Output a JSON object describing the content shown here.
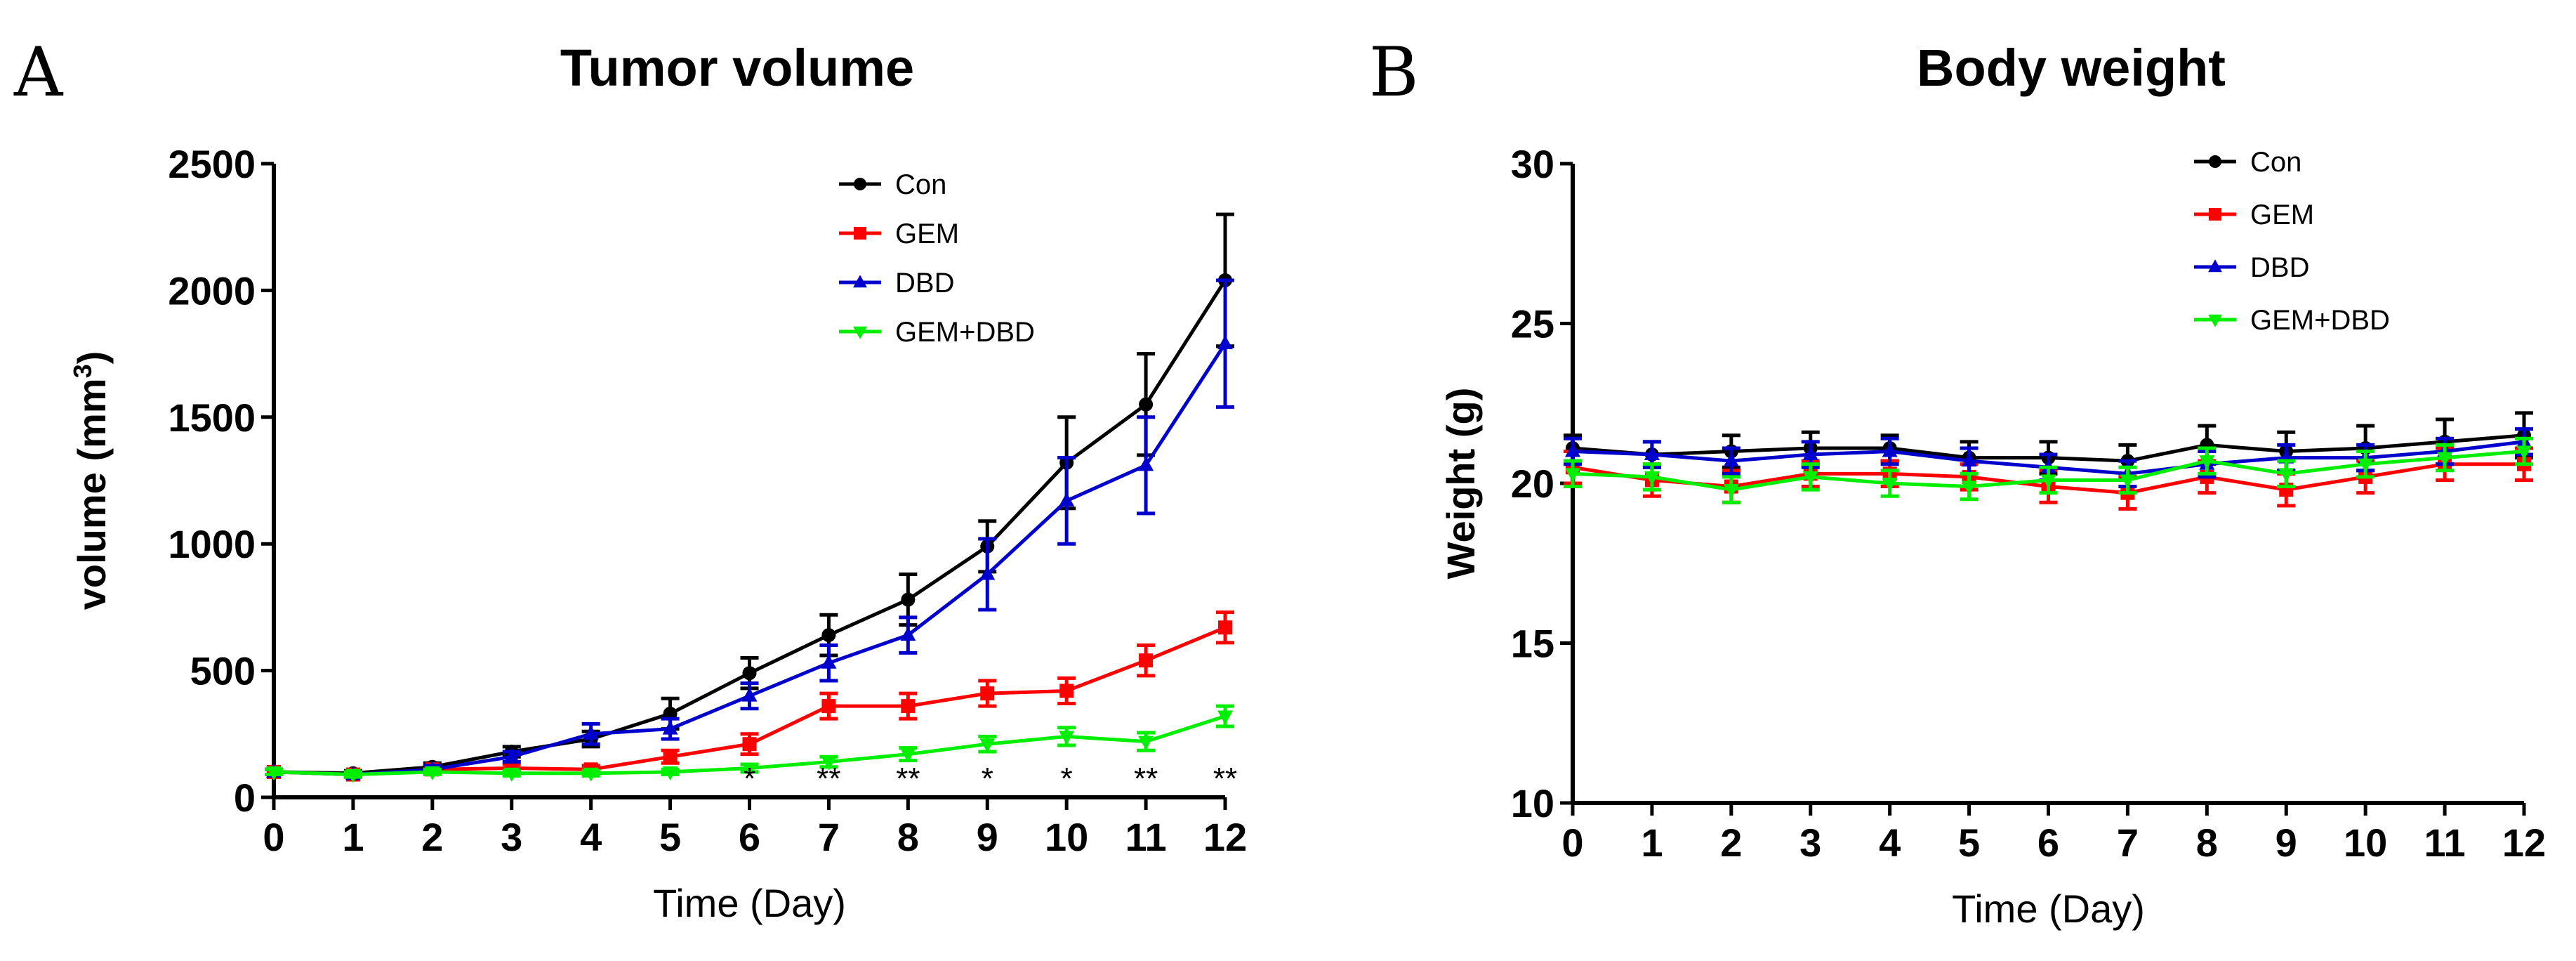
{
  "figure": {
    "panel_a_letter": "A",
    "panel_b_letter": "B"
  },
  "chart_data": [
    {
      "type": "line",
      "title": "Tumor volume",
      "xlabel": "Time (Day)",
      "ylabel": "volume (mm",
      "ylabel_sup": "3",
      "ylabel_close": ")",
      "xlim": [
        0,
        12
      ],
      "ylim": [
        0,
        2500
      ],
      "x_ticks": [
        0,
        1,
        2,
        3,
        4,
        5,
        6,
        7,
        8,
        9,
        10,
        11,
        12
      ],
      "y_ticks": [
        0,
        500,
        1000,
        1500,
        2000,
        2500
      ],
      "legend_position": "top-right",
      "series": [
        {
          "name": "Con",
          "color": "#000000",
          "marker": "circle",
          "x": [
            0,
            1,
            2,
            3,
            4,
            5,
            6,
            7,
            8,
            9,
            10,
            11,
            12
          ],
          "values": [
            100,
            95,
            120,
            180,
            230,
            330,
            490,
            640,
            780,
            990,
            1320,
            1550,
            2040
          ],
          "errors": [
            10,
            10,
            15,
            20,
            30,
            60,
            60,
            80,
            100,
            100,
            180,
            200,
            260
          ]
        },
        {
          "name": "GEM",
          "color": "#ff0000",
          "marker": "square",
          "x": [
            0,
            1,
            2,
            3,
            4,
            5,
            6,
            7,
            8,
            9,
            10,
            11,
            12
          ],
          "values": [
            100,
            90,
            110,
            115,
            110,
            160,
            210,
            360,
            360,
            410,
            420,
            540,
            670
          ],
          "errors": [
            10,
            10,
            10,
            15,
            15,
            25,
            40,
            50,
            50,
            50,
            50,
            60,
            60
          ]
        },
        {
          "name": "DBD",
          "color": "#0000cc",
          "marker": "triangle",
          "x": [
            0,
            1,
            2,
            3,
            4,
            5,
            6,
            7,
            8,
            9,
            10,
            11,
            12
          ],
          "values": [
            100,
            90,
            110,
            160,
            250,
            270,
            400,
            530,
            640,
            880,
            1170,
            1310,
            1790
          ],
          "errors": [
            10,
            10,
            15,
            20,
            40,
            40,
            50,
            70,
            70,
            140,
            170,
            190,
            250
          ]
        },
        {
          "name": "GEM+DBD",
          "color": "#00ee00",
          "marker": "inv-triangle",
          "x": [
            0,
            1,
            2,
            3,
            4,
            5,
            6,
            7,
            8,
            9,
            10,
            11,
            12
          ],
          "values": [
            100,
            90,
            100,
            95,
            95,
            100,
            115,
            140,
            170,
            210,
            240,
            220,
            320
          ],
          "errors": [
            10,
            10,
            10,
            10,
            10,
            10,
            15,
            20,
            25,
            30,
            35,
            35,
            40
          ]
        }
      ],
      "annotations": [
        {
          "x": 6,
          "text": "*"
        },
        {
          "x": 7,
          "text": "**"
        },
        {
          "x": 8,
          "text": "**"
        },
        {
          "x": 9,
          "text": "*"
        },
        {
          "x": 10,
          "text": "*"
        },
        {
          "x": 11,
          "text": "**"
        },
        {
          "x": 12,
          "text": "**"
        }
      ]
    },
    {
      "type": "line",
      "title": "Body weight",
      "xlabel": "Time (Day)",
      "ylabel": "Weight (g)",
      "xlim": [
        0,
        12
      ],
      "ylim": [
        10,
        30
      ],
      "x_ticks": [
        0,
        1,
        2,
        3,
        4,
        5,
        6,
        7,
        8,
        9,
        10,
        11,
        12
      ],
      "y_ticks": [
        10,
        15,
        20,
        25,
        30
      ],
      "legend_position": "top-right",
      "series": [
        {
          "name": "Con",
          "color": "#000000",
          "marker": "circle",
          "x": [
            0,
            1,
            2,
            3,
            4,
            5,
            6,
            7,
            8,
            9,
            10,
            11,
            12
          ],
          "values": [
            21.1,
            20.9,
            21.0,
            21.1,
            21.1,
            20.8,
            20.8,
            20.7,
            21.2,
            21.0,
            21.1,
            21.3,
            21.5
          ],
          "errors": [
            0.4,
            0.4,
            0.5,
            0.5,
            0.4,
            0.5,
            0.5,
            0.5,
            0.6,
            0.6,
            0.7,
            0.7,
            0.7
          ]
        },
        {
          "name": "GEM",
          "color": "#ff0000",
          "marker": "square",
          "x": [
            0,
            1,
            2,
            3,
            4,
            5,
            6,
            7,
            8,
            9,
            10,
            11,
            12
          ],
          "values": [
            20.5,
            20.1,
            19.9,
            20.3,
            20.3,
            20.2,
            19.9,
            19.7,
            20.2,
            19.8,
            20.2,
            20.6,
            20.6
          ],
          "errors": [
            0.5,
            0.5,
            0.5,
            0.4,
            0.4,
            0.4,
            0.5,
            0.5,
            0.5,
            0.5,
            0.5,
            0.5,
            0.5
          ]
        },
        {
          "name": "DBD",
          "color": "#0000cc",
          "marker": "triangle",
          "x": [
            0,
            1,
            2,
            3,
            4,
            5,
            6,
            7,
            8,
            9,
            10,
            11,
            12
          ],
          "values": [
            21.0,
            20.9,
            20.7,
            20.9,
            21.0,
            20.7,
            20.5,
            20.3,
            20.6,
            20.8,
            20.8,
            21.0,
            21.3
          ],
          "errors": [
            0.4,
            0.4,
            0.4,
            0.4,
            0.4,
            0.4,
            0.4,
            0.4,
            0.4,
            0.4,
            0.4,
            0.4,
            0.4
          ]
        },
        {
          "name": "GEM+DBD",
          "color": "#00ee00",
          "marker": "inv-triangle",
          "x": [
            0,
            1,
            2,
            3,
            4,
            5,
            6,
            7,
            8,
            9,
            10,
            11,
            12
          ],
          "values": [
            20.3,
            20.2,
            19.8,
            20.2,
            20.0,
            19.9,
            20.1,
            20.1,
            20.7,
            20.3,
            20.6,
            20.8,
            21.0
          ],
          "errors": [
            0.4,
            0.4,
            0.4,
            0.4,
            0.4,
            0.4,
            0.4,
            0.4,
            0.4,
            0.4,
            0.4,
            0.4,
            0.4
          ]
        }
      ]
    }
  ]
}
